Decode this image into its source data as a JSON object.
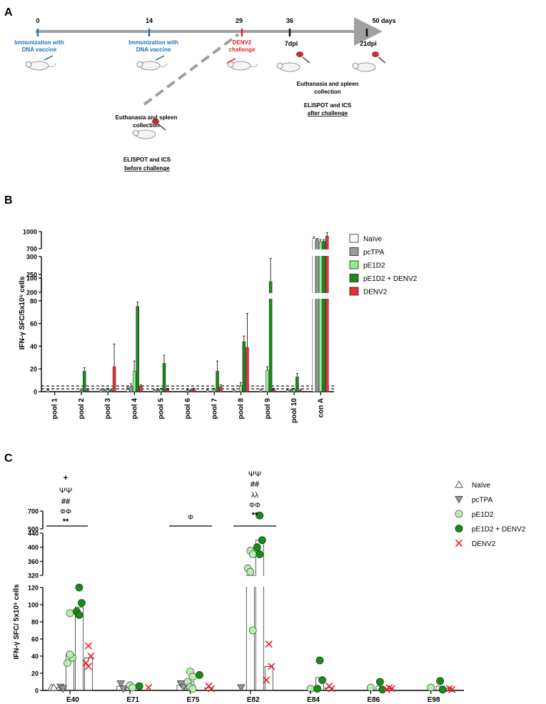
{
  "panel_a": {
    "label": "A",
    "days": [
      "0",
      "14",
      "29",
      "36",
      "50 days"
    ],
    "dpi_7": "7dpi",
    "dpi_21": "21dpi",
    "immunization_line1": "Immunization with",
    "immunization_line2": "DNA vaccine",
    "challenge_line1": "DENV2",
    "challenge_line2": "challenge",
    "euth_line1": "Euthanasia and spleen",
    "euth_line2": "collection",
    "assay": "ELISPOT and ICS",
    "after": "after challenge",
    "before": "before challenge",
    "colors": {
      "immunization": "#1f6fc5",
      "challenge": "#e8202a",
      "arrow": "#a0a0a0"
    }
  },
  "panel_b": {
    "label": "B",
    "ylabel": "IFN-γ SFC/5x10⁵ cells",
    "ytick_top": [
      "1000",
      "700"
    ],
    "ytick_mid": [
      "300",
      "250",
      "200"
    ],
    "ytick_low": [
      "100",
      "80",
      "60",
      "40",
      "20",
      "0"
    ],
    "legend": [
      "Naïve",
      "pcTPA",
      "pE1D2",
      "pE1D2 + DENV2",
      "DENV2"
    ],
    "colors": {
      "naive": "#ffffff",
      "pctpa": "#999999",
      "pe1d2": "#90ee90",
      "pe1d2_denv2": "#1a8a1a",
      "denv2": "#e8303a"
    }
  },
  "panel_c": {
    "label": "C",
    "ylabel": "IFN-γ SFC/ 5x10⁵ cells",
    "ytick_top": [
      "700",
      "500"
    ],
    "ytick_mid": [
      "440",
      "400",
      "360",
      "320"
    ],
    "ytick_low": [
      "120",
      "100",
      "80",
      "60",
      "40",
      "20",
      "0"
    ],
    "legend": [
      "Naïve",
      "pcTPA",
      "pE1D2",
      "pE1D2 + DENV2",
      "DENV2"
    ],
    "sig_e40": [
      "+",
      "ΨΨ",
      "##",
      "ΦΦ",
      "**"
    ],
    "sig_e75": [
      "Φ"
    ],
    "sig_e82": [
      "ΨΨ",
      "##",
      "λλ",
      "ΦΦ",
      "**"
    ]
  },
  "chart_data": [
    {
      "type": "bar",
      "ylabel": "IFN-γ SFC/5x10⁵ cells",
      "categories": [
        "pool 1",
        "pool 2",
        "pool 3",
        "pool 4",
        "pool 5",
        "pool 6",
        "pool 7",
        "pool 8",
        "pool 9",
        "pool 10",
        "con A"
      ],
      "ylim": [
        0,
        1000
      ],
      "axis_breaks": [
        [
          100,
          200
        ],
        [
          300,
          700
        ]
      ],
      "threshold_line": 5,
      "series": [
        {
          "name": "Naïve",
          "values": [
            1,
            0,
            1,
            2,
            1,
            0,
            1,
            1,
            1,
            1,
            880
          ],
          "errors": [
            1,
            0,
            1,
            2,
            1,
            0,
            1,
            1,
            1,
            1,
            30
          ]
        },
        {
          "name": "pcTPA",
          "values": [
            0,
            0,
            1,
            4,
            1,
            0,
            0,
            0,
            0,
            1,
            860
          ],
          "errors": [
            0,
            0,
            1,
            3,
            1,
            0,
            0,
            0,
            0,
            1,
            20
          ]
        },
        {
          "name": "pE1D2",
          "values": [
            0,
            1,
            2,
            18,
            2,
            1,
            2,
            5,
            19,
            2,
            820
          ],
          "errors": [
            0,
            1,
            1,
            9,
            1,
            1,
            1,
            3,
            3,
            1,
            40
          ]
        },
        {
          "name": "pE1D2 + DENV2",
          "values": [
            0,
            18,
            1,
            75,
            25,
            1,
            18,
            44,
            230,
            13,
            830
          ],
          "errors": [
            0,
            3,
            1,
            4,
            7,
            1,
            9,
            5,
            65,
            3,
            30
          ]
        },
        {
          "name": "DENV2",
          "values": [
            0,
            1,
            22,
            5,
            2,
            2,
            4,
            39,
            2,
            1,
            920
          ],
          "errors": [
            0,
            1,
            20,
            1,
            1,
            1,
            2,
            30,
            1,
            1,
            60
          ]
        }
      ]
    },
    {
      "type": "scatter",
      "ylabel": "IFN-γ SFC/ 5x10⁵ cells",
      "categories": [
        "E40",
        "E71",
        "E75",
        "E82",
        "E84",
        "E86",
        "E98"
      ],
      "ylim": [
        0,
        700
      ],
      "axis_breaks": [
        [
          120,
          320
        ],
        [
          440,
          500
        ]
      ],
      "series": [
        {
          "name": "Naïve",
          "points": [
            [
              0,
              0
            ],
            [
              0,
              0
            ]
          ],
          "means": [
            0,
            0,
            0,
            0,
            0,
            0,
            0
          ]
        },
        {
          "name": "pcTPA",
          "points": [
            [
              0,
              4
            ],
            [
              0,
              2
            ],
            [
              1,
              8
            ],
            [
              1,
              2
            ],
            [
              2,
              8
            ],
            [
              2,
              4
            ],
            [
              3,
              0
            ]
          ],
          "means": [
            3,
            5,
            6,
            0,
            0,
            0,
            0
          ]
        },
        {
          "name": "pE1D2",
          "points": [
            [
              0,
              90
            ],
            [
              0,
              38
            ],
            [
              0,
              32
            ],
            [
              0,
              42
            ],
            [
              1,
              6
            ],
            [
              1,
              0
            ],
            [
              2,
              22
            ],
            [
              2,
              16
            ],
            [
              2,
              10
            ],
            [
              2,
              4
            ],
            [
              2,
              2
            ],
            [
              3,
              390
            ],
            [
              3,
              380
            ],
            [
              3,
              340
            ],
            [
              3,
              330
            ],
            [
              3,
              70
            ],
            [
              4,
              2
            ],
            [
              5,
              0
            ],
            [
              6,
              0
            ]
          ],
          "means": [
            42,
            3,
            10,
            300,
            0,
            0,
            0
          ]
        },
        {
          "name": "pE1D2 + DENV2",
          "points": [
            [
              0,
              120
            ],
            [
              0,
              102
            ],
            [
              0,
              92
            ],
            [
              0,
              88
            ],
            [
              1,
              5
            ],
            [
              2,
              18
            ],
            [
              3,
              650
            ],
            [
              3,
              420
            ],
            [
              3,
              400
            ],
            [
              3,
              380
            ],
            [
              4,
              35
            ],
            [
              4,
              12
            ],
            [
              4,
              2
            ],
            [
              5,
              10
            ],
            [
              5,
              1
            ],
            [
              6,
              11
            ],
            [
              6,
              1
            ]
          ],
          "means": [
            97,
            0,
            0,
            420,
            15,
            5,
            5
          ]
        },
        {
          "name": "DENV2",
          "points": [
            [
              0,
              52
            ],
            [
              0,
              40
            ],
            [
              0,
              32
            ],
            [
              0,
              28
            ],
            [
              1,
              0
            ],
            [
              2,
              5
            ],
            [
              2,
              2
            ],
            [
              3,
              54
            ],
            [
              3,
              28
            ],
            [
              3,
              12
            ],
            [
              4,
              5
            ],
            [
              4,
              2
            ],
            [
              5,
              3
            ],
            [
              5,
              2
            ],
            [
              5,
              1
            ],
            [
              6,
              2
            ],
            [
              6,
              1
            ]
          ],
          "means": [
            38,
            0,
            3,
            28,
            3,
            2,
            2
          ]
        }
      ]
    }
  ]
}
